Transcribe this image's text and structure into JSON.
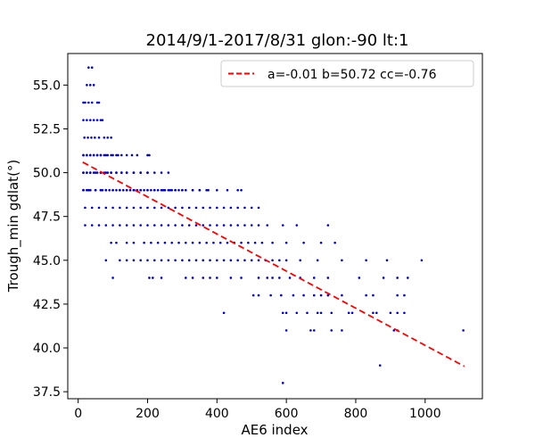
{
  "chart_data": {
    "type": "scatter",
    "title": "2014/9/1-2017/8/31 glon:-90 lt:1",
    "xlabel": "AE6 index",
    "ylabel": "Trough_min gdlat(°)",
    "xlim": [
      -30,
      1165
    ],
    "ylim": [
      37.1,
      56.8
    ],
    "xticks": [
      0,
      200,
      400,
      600,
      800,
      1000
    ],
    "yticks": [
      37.5,
      40.0,
      42.5,
      45.0,
      47.5,
      50.0,
      52.5,
      55.0
    ],
    "grid": false,
    "legend_position": "top-right",
    "marker_color": "#0000cc",
    "fit_color": "#ff0000",
    "fit_line": {
      "label": "a=-0.01 b=50.72 cc=-0.76",
      "x": [
        13,
        1113
      ],
      "y": [
        50.6,
        38.95
      ]
    },
    "series": [
      {
        "x": [
          30,
          40,
          25,
          35,
          45,
          15,
          20,
          30,
          40,
          55,
          60,
          15,
          25,
          35,
          45,
          55,
          65,
          70,
          18,
          28,
          38,
          48,
          60,
          75,
          85,
          95,
          15,
          25,
          35,
          45,
          55,
          65,
          75,
          85,
          100,
          115,
          15,
          25,
          35,
          45,
          55,
          65,
          80,
          95,
          110,
          125,
          140,
          155,
          170,
          200,
          205,
          15,
          25,
          35,
          45,
          55,
          65,
          75,
          85,
          95,
          110,
          125,
          140,
          160,
          180,
          200,
          15,
          25,
          35,
          50,
          65,
          80,
          95,
          110,
          125,
          140,
          160,
          180,
          200,
          220,
          240,
          260,
          15,
          25,
          35,
          50,
          65,
          80,
          100,
          120,
          140,
          160,
          180,
          200,
          220,
          245,
          265,
          280,
          300,
          15,
          25,
          35,
          50,
          65,
          80,
          100,
          120,
          140,
          160,
          180,
          200,
          220,
          240,
          260,
          280,
          300,
          330,
          350,
          370,
          15,
          30,
          50,
          70,
          90,
          110,
          130,
          150,
          170,
          190,
          210,
          230,
          250,
          270,
          290,
          310,
          330,
          350,
          375,
          400,
          430,
          460,
          470,
          20,
          40,
          60,
          80,
          100,
          120,
          140,
          160,
          180,
          200,
          220,
          240,
          260,
          280,
          300,
          320,
          340,
          360,
          380,
          400,
          420,
          440,
          460,
          480,
          500,
          520,
          20,
          40,
          60,
          80,
          100,
          120,
          140,
          160,
          180,
          200,
          220,
          240,
          260,
          280,
          300,
          320,
          340,
          360,
          380,
          400,
          420,
          440,
          460,
          480,
          500,
          520,
          545,
          590,
          630,
          720,
          95,
          110,
          140,
          160,
          190,
          210,
          230,
          250,
          270,
          290,
          310,
          330,
          350,
          370,
          390,
          410,
          430,
          450,
          470,
          490,
          510,
          530,
          560,
          600,
          650,
          700,
          740,
          80,
          120,
          140,
          160,
          180,
          200,
          220,
          240,
          260,
          280,
          300,
          320,
          340,
          360,
          380,
          400,
          420,
          440,
          460,
          480,
          500,
          520,
          540,
          560,
          580,
          600,
          640,
          690,
          760,
          830,
          890,
          990,
          100,
          205,
          215,
          240,
          310,
          330,
          360,
          380,
          400,
          440,
          470,
          520,
          545,
          560,
          580,
          610,
          640,
          680,
          720,
          810,
          880,
          920,
          950,
          505,
          520,
          555,
          585,
          620,
          650,
          680,
          700,
          720,
          760,
          830,
          850,
          920,
          940,
          630,
          660,
          700,
          730,
          790,
          850,
          900,
          940,
          420,
          590,
          600,
          690,
          780,
          860,
          920,
          600,
          670,
          730,
          920,
          680,
          760,
          910,
          1110,
          870,
          590
        ],
        "y": [
          56,
          56,
          55,
          55,
          55,
          54,
          54,
          54,
          54,
          54,
          54,
          53,
          53,
          53,
          53,
          53,
          53,
          53,
          52,
          52,
          52,
          52,
          52,
          52,
          52,
          52,
          51,
          51,
          51,
          51,
          51,
          51,
          51,
          51,
          51,
          51,
          51,
          51,
          51,
          51,
          51,
          51,
          51,
          51,
          51,
          51,
          51,
          51,
          51,
          51,
          51,
          50,
          50,
          50,
          50,
          50,
          50,
          50,
          50,
          50,
          50,
          50,
          50,
          50,
          50,
          50,
          50,
          50,
          50,
          50,
          50,
          50,
          50,
          50,
          50,
          50,
          50,
          50,
          50,
          50,
          50,
          50,
          49,
          49,
          49,
          49,
          49,
          49,
          49,
          49,
          49,
          49,
          49,
          49,
          49,
          49,
          49,
          49,
          49,
          49,
          49,
          49,
          49,
          49,
          49,
          49,
          49,
          49,
          49,
          49,
          49,
          49,
          49,
          49,
          49,
          49,
          49,
          49,
          49,
          49,
          49,
          49,
          49,
          49,
          49,
          49,
          49,
          49,
          49,
          49,
          49,
          49,
          49,
          49,
          49,
          49,
          49,
          49,
          49,
          49,
          49,
          49,
          48,
          48,
          48,
          48,
          48,
          48,
          48,
          48,
          48,
          48,
          48,
          48,
          48,
          48,
          48,
          48,
          48,
          48,
          48,
          48,
          48,
          48,
          48,
          48,
          48,
          48,
          47,
          47,
          47,
          47,
          47,
          47,
          47,
          47,
          47,
          47,
          47,
          47,
          47,
          47,
          47,
          47,
          47,
          47,
          47,
          47,
          47,
          47,
          47,
          47,
          47,
          47,
          47,
          47,
          47,
          47,
          46,
          46,
          46,
          46,
          46,
          46,
          46,
          46,
          46,
          46,
          46,
          46,
          46,
          46,
          46,
          46,
          46,
          46,
          46,
          46,
          46,
          46,
          46,
          46,
          46,
          46,
          46,
          45,
          45,
          45,
          45,
          45,
          45,
          45,
          45,
          45,
          45,
          45,
          45,
          45,
          45,
          45,
          45,
          45,
          45,
          45,
          45,
          45,
          45,
          45,
          45,
          45,
          45,
          45,
          45,
          45,
          45,
          45,
          45,
          44,
          44,
          44,
          44,
          44,
          44,
          44,
          44,
          44,
          44,
          44,
          44,
          44,
          44,
          44,
          44,
          44,
          44,
          44,
          44,
          44,
          44,
          44,
          43,
          43,
          43,
          43,
          43,
          43,
          43,
          43,
          43,
          43,
          43,
          43,
          43,
          43,
          42,
          42,
          42,
          42,
          42,
          42,
          42,
          42,
          42,
          42,
          42,
          42,
          42,
          42,
          42,
          41,
          41,
          41,
          41,
          41,
          41,
          41,
          41,
          39,
          38
        ]
      }
    ]
  }
}
